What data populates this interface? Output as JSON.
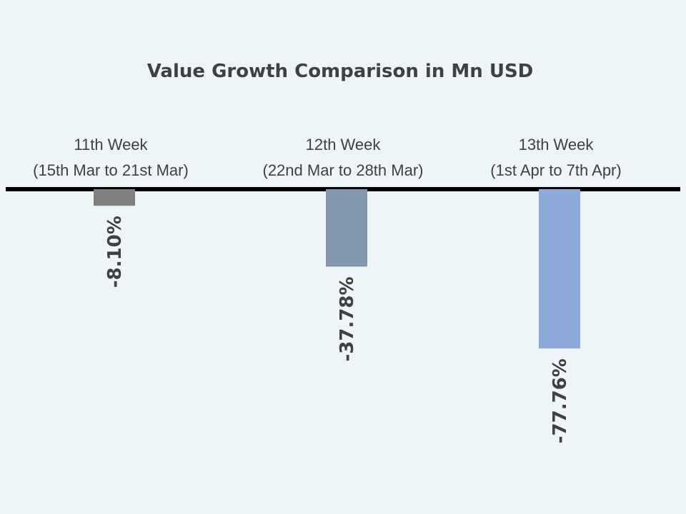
{
  "chart_data": {
    "type": "bar",
    "title": "Value Growth Comparison  in Mn USD",
    "categories": [
      {
        "line1": "11th Week",
        "line2": "(15th Mar to 21st Mar)"
      },
      {
        "line1": "12th Week",
        "line2": "(22nd Mar to 28th Mar)"
      },
      {
        "line1": "13th Week",
        "line2": "(1st Apr to 7th Apr)"
      }
    ],
    "series": [
      {
        "values": [
          -8.1,
          -37.78,
          -77.76
        ],
        "labels": [
          "-8.10%",
          "-37.78%",
          "-77.76%"
        ],
        "colors": [
          "#7f7f7f",
          "#8497b0",
          "#8eaadb"
        ]
      }
    ],
    "ylim": [
      -100,
      0
    ],
    "grid": false,
    "legend": "none"
  }
}
